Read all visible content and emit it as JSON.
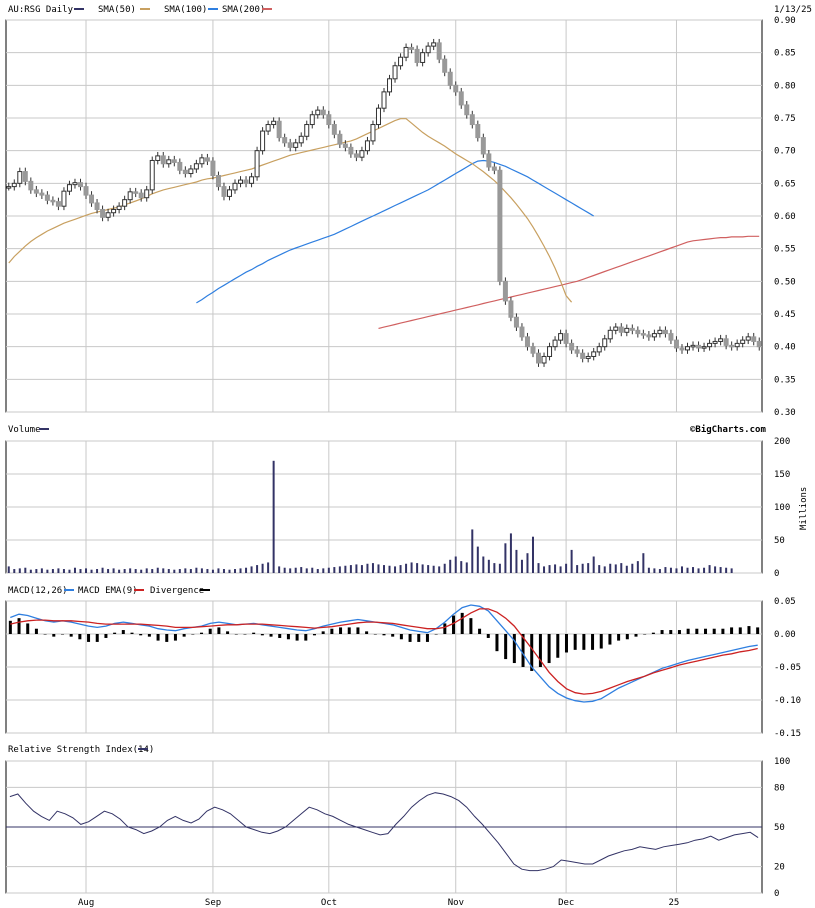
{
  "header": {
    "symbol_label": "AU:RSG Daily",
    "sma50_label": "SMA(50)",
    "sma100_label": "SMA(100)",
    "sma200_label": "SMA(200)",
    "date": "1/13/25"
  },
  "volume_panel": {
    "label": "Volume",
    "brand": "©BigCharts.com",
    "unit": "Millions"
  },
  "macd_panel": {
    "macd_label": "MACD(12,26)",
    "ema_label": "MACD EMA(9)",
    "div_label": "Divergence"
  },
  "rsi_panel": {
    "label": "Relative Strength Index(14)"
  },
  "x_axis": {
    "labels": [
      {
        "text": "Aug",
        "index": 14
      },
      {
        "text": "Sep",
        "index": 37
      },
      {
        "text": "Oct",
        "index": 58
      },
      {
        "text": "Nov",
        "index": 81
      },
      {
        "text": "Dec",
        "index": 101
      },
      {
        "text": "25",
        "index": 121
      }
    ]
  },
  "colors": {
    "sma50": "#c8a060",
    "sma100": "#2f7fe0",
    "sma200": "#d06060",
    "volume": "#333366",
    "macd": "#2f7fe0",
    "ema": "#cc2222",
    "divergence": "#000000",
    "rsi": "#333366",
    "grid": "#c8c8c8",
    "candle_down": "#999999"
  },
  "chart_data": [
    {
      "type": "candlestick",
      "title": "AU:RSG Daily",
      "ylim": [
        0.3,
        0.9
      ],
      "yticks": [
        "0.90",
        "0.85",
        "0.80",
        "0.75",
        "0.70",
        "0.65",
        "0.60",
        "0.55",
        "0.50",
        "0.45",
        "0.40",
        "0.35",
        "0.30"
      ],
      "close": [
        0.645,
        0.65,
        0.668,
        0.653,
        0.64,
        0.635,
        0.632,
        0.624,
        0.622,
        0.615,
        0.638,
        0.648,
        0.651,
        0.645,
        0.632,
        0.62,
        0.61,
        0.598,
        0.605,
        0.61,
        0.615,
        0.625,
        0.637,
        0.635,
        0.628,
        0.64,
        0.685,
        0.692,
        0.68,
        0.686,
        0.682,
        0.67,
        0.665,
        0.672,
        0.68,
        0.689,
        0.684,
        0.662,
        0.645,
        0.63,
        0.64,
        0.65,
        0.655,
        0.65,
        0.66,
        0.7,
        0.73,
        0.74,
        0.745,
        0.72,
        0.712,
        0.705,
        0.712,
        0.722,
        0.74,
        0.755,
        0.762,
        0.755,
        0.74,
        0.725,
        0.71,
        0.705,
        0.695,
        0.69,
        0.7,
        0.715,
        0.74,
        0.765,
        0.79,
        0.81,
        0.83,
        0.843,
        0.858,
        0.855,
        0.835,
        0.85,
        0.86,
        0.865,
        0.84,
        0.82,
        0.8,
        0.79,
        0.77,
        0.755,
        0.74,
        0.72,
        0.695,
        0.675,
        0.67,
        0.5,
        0.47,
        0.445,
        0.43,
        0.415,
        0.4,
        0.39,
        0.375,
        0.385,
        0.4,
        0.41,
        0.42,
        0.405,
        0.395,
        0.39,
        0.382,
        0.385,
        0.392,
        0.4,
        0.412,
        0.425,
        0.43,
        0.422,
        0.428,
        0.425,
        0.42,
        0.418,
        0.415,
        0.42,
        0.425,
        0.42,
        0.41,
        0.398,
        0.395,
        0.4,
        0.402,
        0.398,
        0.4,
        0.405,
        0.408,
        0.412,
        0.402,
        0.4,
        0.405,
        0.41,
        0.415,
        0.408,
        0.4
      ],
      "volume_millions": [
        10,
        6,
        7,
        8,
        5,
        6,
        7,
        5,
        6,
        7,
        6,
        5,
        8,
        6,
        7,
        5,
        6,
        8,
        6,
        7,
        5,
        6,
        7,
        6,
        5,
        7,
        6,
        8,
        7,
        6,
        5,
        6,
        7,
        6,
        8,
        7,
        6,
        5,
        7,
        6,
        5,
        6,
        7,
        8,
        10,
        12,
        14,
        16,
        170,
        10,
        8,
        7,
        8,
        9,
        7,
        8,
        6,
        7,
        8,
        9,
        10,
        11,
        12,
        13,
        12,
        14,
        15,
        13,
        12,
        11,
        10,
        12,
        14,
        16,
        15,
        13,
        12,
        11,
        10,
        14,
        20,
        25,
        18,
        16,
        66,
        40,
        25,
        20,
        15,
        14,
        45,
        60,
        35,
        20,
        30,
        55,
        15,
        10,
        12,
        13,
        10,
        14,
        35,
        12,
        14,
        15,
        25,
        12,
        10,
        14,
        13,
        15,
        11,
        14,
        18,
        30,
        8,
        7,
        6,
        9,
        8,
        7,
        10,
        8,
        9,
        7,
        8,
        12,
        10,
        9,
        8,
        7
      ],
      "sma50": [
        0.528,
        0.538,
        0.546,
        0.554,
        0.561,
        0.567,
        0.572,
        0.577,
        0.581,
        0.585,
        0.589,
        0.592,
        0.595,
        0.598,
        0.601,
        0.604,
        0.606,
        0.608,
        0.61,
        0.612,
        0.614,
        0.617,
        0.62,
        0.623,
        0.626,
        0.63,
        0.634,
        0.637,
        0.64,
        0.642,
        0.644,
        0.646,
        0.648,
        0.65,
        0.652,
        0.655,
        0.657,
        0.658,
        0.66,
        0.662,
        0.664,
        0.666,
        0.668,
        0.67,
        0.672,
        0.675,
        0.678,
        0.681,
        0.684,
        0.687,
        0.69,
        0.693,
        0.695,
        0.697,
        0.699,
        0.701,
        0.703,
        0.705,
        0.707,
        0.709,
        0.711,
        0.713,
        0.715,
        0.718,
        0.722,
        0.726,
        0.73,
        0.734,
        0.738,
        0.742,
        0.746,
        0.749,
        0.749,
        0.742,
        0.735,
        0.728,
        0.722,
        0.717,
        0.712,
        0.707,
        0.701,
        0.695,
        0.69,
        0.685,
        0.68,
        0.674,
        0.668,
        0.661,
        0.654,
        0.646,
        0.637,
        0.628,
        0.618,
        0.607,
        0.596,
        0.583,
        0.569,
        0.554,
        0.538,
        0.52,
        0.5,
        0.478,
        0.468
      ],
      "sma100": [
        0.467,
        0.472,
        0.478,
        0.483,
        0.489,
        0.494,
        0.499,
        0.504,
        0.509,
        0.514,
        0.518,
        0.523,
        0.527,
        0.532,
        0.536,
        0.54,
        0.544,
        0.548,
        0.551,
        0.554,
        0.557,
        0.56,
        0.563,
        0.566,
        0.569,
        0.572,
        0.576,
        0.58,
        0.584,
        0.588,
        0.592,
        0.596,
        0.6,
        0.604,
        0.608,
        0.612,
        0.616,
        0.62,
        0.624,
        0.628,
        0.632,
        0.636,
        0.64,
        0.645,
        0.65,
        0.655,
        0.66,
        0.665,
        0.67,
        0.675,
        0.68,
        0.684,
        0.685,
        0.684,
        0.682,
        0.679,
        0.676,
        0.672,
        0.668,
        0.664,
        0.66,
        0.655,
        0.65,
        0.645,
        0.64,
        0.635,
        0.63,
        0.625,
        0.62,
        0.615,
        0.61,
        0.605,
        0.6
      ],
      "sma200": [
        0.428,
        0.43,
        0.432,
        0.434,
        0.436,
        0.438,
        0.44,
        0.442,
        0.444,
        0.446,
        0.448,
        0.45,
        0.452,
        0.454,
        0.456,
        0.458,
        0.46,
        0.462,
        0.464,
        0.466,
        0.468,
        0.47,
        0.472,
        0.474,
        0.476,
        0.478,
        0.48,
        0.482,
        0.484,
        0.486,
        0.488,
        0.49,
        0.492,
        0.494,
        0.496,
        0.498,
        0.5,
        0.503,
        0.506,
        0.509,
        0.512,
        0.515,
        0.518,
        0.521,
        0.524,
        0.527,
        0.53,
        0.533,
        0.536,
        0.539,
        0.542,
        0.545,
        0.548,
        0.551,
        0.554,
        0.557,
        0.56,
        0.562,
        0.563,
        0.564,
        0.565,
        0.566,
        0.567,
        0.567,
        0.568,
        0.568,
        0.568,
        0.569,
        0.569,
        0.569
      ],
      "macd": [
        0.025,
        0.03,
        0.028,
        0.024,
        0.02,
        0.018,
        0.02,
        0.018,
        0.015,
        0.012,
        0.01,
        0.012,
        0.016,
        0.018,
        0.016,
        0.014,
        0.012,
        0.008,
        0.006,
        0.005,
        0.008,
        0.01,
        0.012,
        0.016,
        0.018,
        0.016,
        0.014,
        0.015,
        0.016,
        0.014,
        0.012,
        0.01,
        0.008,
        0.006,
        0.005,
        0.008,
        0.012,
        0.015,
        0.018,
        0.02,
        0.022,
        0.02,
        0.018,
        0.016,
        0.014,
        0.01,
        0.006,
        0.004,
        0.002,
        0.008,
        0.018,
        0.03,
        0.04,
        0.044,
        0.042,
        0.035,
        0.02,
        0.005,
        -0.01,
        -0.03,
        -0.05,
        -0.065,
        -0.08,
        -0.09,
        -0.097,
        -0.101,
        -0.103,
        -0.102,
        -0.098,
        -0.09,
        -0.082,
        -0.076,
        -0.07,
        -0.064,
        -0.058,
        -0.052,
        -0.048,
        -0.044,
        -0.04,
        -0.037,
        -0.034,
        -0.031,
        -0.028,
        -0.025,
        -0.022,
        -0.019,
        -0.017
      ],
      "macd_ema": [
        0.015,
        0.018,
        0.02,
        0.021,
        0.021,
        0.02,
        0.02,
        0.02,
        0.019,
        0.018,
        0.016,
        0.015,
        0.015,
        0.015,
        0.015,
        0.015,
        0.014,
        0.013,
        0.012,
        0.01,
        0.01,
        0.01,
        0.011,
        0.012,
        0.013,
        0.014,
        0.014,
        0.015,
        0.015,
        0.015,
        0.014,
        0.013,
        0.012,
        0.011,
        0.01,
        0.009,
        0.01,
        0.011,
        0.013,
        0.015,
        0.017,
        0.018,
        0.018,
        0.017,
        0.016,
        0.014,
        0.012,
        0.01,
        0.008,
        0.008,
        0.01,
        0.016,
        0.024,
        0.032,
        0.038,
        0.038,
        0.033,
        0.024,
        0.012,
        -0.005,
        -0.022,
        -0.04,
        -0.058,
        -0.072,
        -0.083,
        -0.089,
        -0.091,
        -0.09,
        -0.087,
        -0.082,
        -0.077,
        -0.072,
        -0.068,
        -0.064,
        -0.059,
        -0.055,
        -0.051,
        -0.047,
        -0.044,
        -0.041,
        -0.038,
        -0.035,
        -0.032,
        -0.03,
        -0.027,
        -0.025,
        -0.022
      ],
      "divergence": [
        0.01,
        0.012,
        0.008,
        0.004,
        0.0,
        -0.002,
        0.0,
        -0.002,
        -0.004,
        -0.006,
        -0.006,
        -0.003,
        0.001,
        0.003,
        0.001,
        -0.001,
        -0.002,
        -0.005,
        -0.006,
        -0.005,
        -0.002,
        0.0,
        0.001,
        0.004,
        0.005,
        0.002,
        0.0,
        0.0,
        0.001,
        -0.001,
        -0.002,
        -0.003,
        -0.004,
        -0.005,
        -0.005,
        -0.001,
        0.002,
        0.004,
        0.005,
        0.005,
        0.005,
        0.002,
        0.0,
        -0.001,
        -0.002,
        -0.004,
        -0.006,
        -0.006,
        -0.006,
        0.0,
        0.008,
        0.014,
        0.016,
        0.012,
        0.004,
        -0.003,
        -0.013,
        -0.019,
        -0.022,
        -0.025,
        -0.028,
        -0.025,
        -0.022,
        -0.018,
        -0.014,
        -0.012,
        -0.012,
        -0.012,
        -0.011,
        -0.008,
        -0.005,
        -0.004,
        -0.002,
        0.0,
        0.001,
        0.003,
        0.003,
        0.003,
        0.004,
        0.004,
        0.004,
        0.004,
        0.004,
        0.005,
        0.005,
        0.006,
        0.005
      ],
      "macd_ylim": [
        -0.15,
        0.05
      ],
      "rsi": [
        73,
        75,
        68,
        62,
        58,
        55,
        62,
        60,
        57,
        52,
        54,
        58,
        62,
        60,
        56,
        50,
        48,
        45,
        47,
        50,
        55,
        58,
        55,
        53,
        56,
        62,
        65,
        63,
        60,
        55,
        50,
        48,
        46,
        45,
        47,
        50,
        55,
        60,
        65,
        63,
        60,
        58,
        55,
        52,
        50,
        48,
        46,
        44,
        45,
        52,
        58,
        65,
        70,
        74,
        76,
        75,
        73,
        70,
        65,
        58,
        52,
        45,
        38,
        30,
        22,
        18,
        17,
        17,
        18,
        20,
        25,
        24,
        23,
        22,
        22,
        25,
        28,
        30,
        32,
        33,
        35,
        34,
        33,
        35,
        36,
        37,
        38,
        40,
        41,
        43,
        40,
        42,
        44,
        45,
        46,
        42
      ],
      "rsi_ylim": [
        0,
        100
      ]
    }
  ]
}
